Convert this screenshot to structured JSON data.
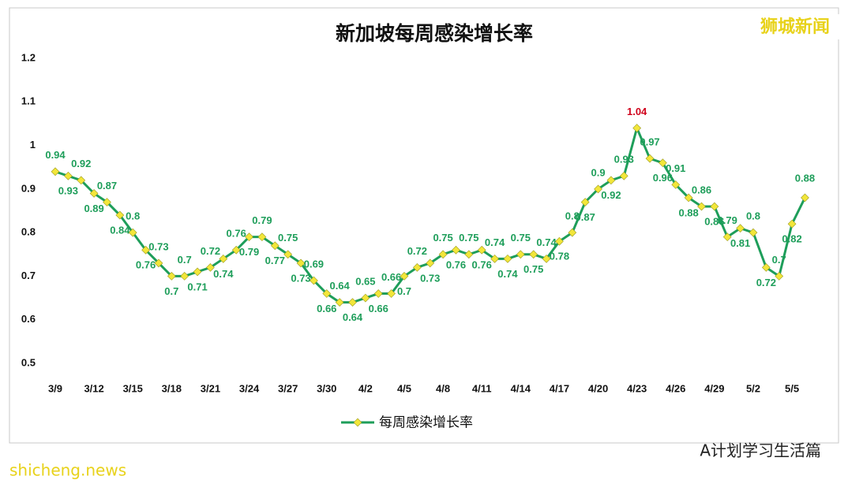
{
  "chart_data": {
    "type": "line",
    "title": "新加坡每周感染增长率",
    "categories": [
      "3/9",
      null,
      null,
      "3/12",
      null,
      null,
      "3/15",
      null,
      null,
      "3/18",
      null,
      null,
      "3/21",
      null,
      null,
      "3/24",
      null,
      null,
      "3/27",
      null,
      null,
      "3/30",
      null,
      null,
      "4/2",
      null,
      null,
      "4/5",
      null,
      null,
      "4/8",
      null,
      null,
      "4/11",
      null,
      null,
      "4/14",
      null,
      null,
      "4/17",
      null,
      null,
      "4/20",
      null,
      null,
      "4/23",
      null,
      null,
      "4/26",
      null,
      null,
      "4/29",
      null,
      null,
      "5/2",
      null,
      null,
      "5/5",
      null
    ],
    "series": [
      {
        "name": "每周感染增长率",
        "color": "#1e9e5a",
        "marker_color": "#f2e63a",
        "values": [
          0.94,
          0.93,
          0.92,
          0.89,
          0.87,
          0.84,
          0.8,
          0.76,
          0.73,
          0.7,
          0.7,
          0.71,
          0.72,
          0.74,
          0.76,
          0.79,
          0.79,
          0.77,
          0.75,
          0.73,
          0.69,
          0.66,
          0.64,
          0.64,
          0.65,
          0.66,
          0.66,
          0.7,
          0.72,
          0.73,
          0.75,
          0.76,
          0.75,
          0.76,
          0.74,
          0.74,
          0.75,
          0.75,
          0.74,
          0.78,
          0.8,
          0.87,
          0.9,
          0.92,
          0.93,
          1.04,
          0.97,
          0.96,
          0.91,
          0.88,
          0.86,
          0.86,
          0.79,
          0.81,
          0.8,
          0.72,
          0.7,
          0.82,
          0.88
        ]
      }
    ],
    "ylim": [
      0.5,
      1.2
    ],
    "yticks": [
      0.5,
      0.6,
      0.7,
      0.8,
      0.9,
      1,
      1.1,
      1.2
    ],
    "grid": false,
    "legend": "bottom",
    "peak_label_color": "#d0021b",
    "watermark": "狮城新闻",
    "source": "shicheng.news",
    "credit": "A计划学习生活篇"
  }
}
